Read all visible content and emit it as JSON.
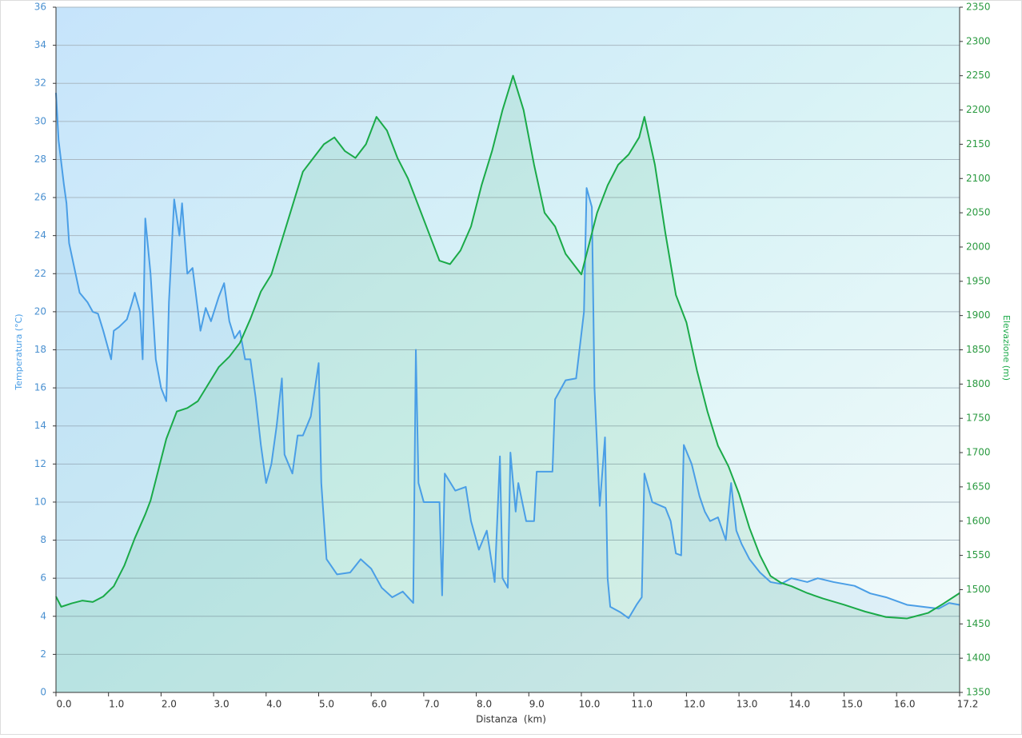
{
  "chart_data": {
    "type": "line",
    "x_label": "Distanza  (km)",
    "y_label": "Temperatura (°C)",
    "y2_label": "Elevazione (m)",
    "xlim": [
      0,
      17.2
    ],
    "xticks": [
      {
        "value": 0,
        "label": "0.0"
      },
      {
        "value": 1,
        "label": "1.0"
      },
      {
        "value": 2,
        "label": "2.0"
      },
      {
        "value": 3,
        "label": "3.0"
      },
      {
        "value": 4,
        "label": "4.0"
      },
      {
        "value": 5,
        "label": "5.0"
      },
      {
        "value": 6,
        "label": "6.0"
      },
      {
        "value": 7,
        "label": "7.0"
      },
      {
        "value": 8,
        "label": "8.0"
      },
      {
        "value": 9,
        "label": "9.0"
      },
      {
        "value": 10,
        "label": "10.0"
      },
      {
        "value": 11,
        "label": "11.0"
      },
      {
        "value": 12,
        "label": "12.0"
      },
      {
        "value": 13,
        "label": "13.0"
      },
      {
        "value": 14,
        "label": "14.0"
      },
      {
        "value": 15,
        "label": "15.0"
      },
      {
        "value": 16,
        "label": "16.0"
      },
      17.2
    ],
    "ylim": [
      0,
      36
    ],
    "yticks": [
      0,
      2,
      4,
      6,
      8,
      10,
      12,
      14,
      16,
      18,
      20,
      22,
      24,
      26,
      28,
      30,
      32,
      34,
      36
    ],
    "y2lim": [
      1350,
      2350
    ],
    "y2ticks": [
      1350,
      1400,
      1450,
      1500,
      1550,
      1600,
      1650,
      1700,
      1750,
      1800,
      1850,
      1900,
      1950,
      2000,
      2050,
      2100,
      2150,
      2200,
      2250,
      2300,
      2350
    ],
    "grid": true,
    "series": [
      {
        "name": "Temperatura",
        "color": "#4a9ee6",
        "x": [
          0,
          0.05,
          0.15,
          0.2,
          0.25,
          0.35,
          0.45,
          0.6,
          0.7,
          0.8,
          0.9,
          1.0,
          1.05,
          1.1,
          1.2,
          1.35,
          1.45,
          1.5,
          1.6,
          1.65,
          1.7,
          1.8,
          1.9,
          2.0,
          2.1,
          2.15,
          2.25,
          2.35,
          2.4,
          2.5,
          2.6,
          2.75,
          2.85,
          2.95,
          3.1,
          3.2,
          3.3,
          3.4,
          3.5,
          3.6,
          3.7,
          3.8,
          3.9,
          4.0,
          4.1,
          4.2,
          4.3,
          4.35,
          4.5,
          4.6,
          4.7,
          4.85,
          5.0,
          5.05,
          5.15,
          5.35,
          5.6,
          5.8,
          6.0,
          6.2,
          6.4,
          6.6,
          6.8,
          6.85,
          6.9,
          7.0,
          7.3,
          7.35,
          7.4,
          7.6,
          7.8,
          7.9,
          8.05,
          8.2,
          8.35,
          8.45,
          8.5,
          8.6,
          8.65,
          8.75,
          8.8,
          8.95,
          9.1,
          9.15,
          9.45,
          9.5,
          9.7,
          9.9,
          10.05,
          10.1,
          10.2,
          10.25,
          10.35,
          10.45,
          10.5,
          10.55,
          10.75,
          10.9,
          11.05,
          11.15,
          11.2,
          11.35,
          11.6,
          11.7,
          11.8,
          11.9,
          11.95,
          12.1,
          12.25,
          12.35,
          12.45,
          12.6,
          12.75,
          12.85,
          12.95,
          13.05,
          13.2,
          13.4,
          13.6,
          13.8,
          14.0,
          14.3,
          14.5,
          14.8,
          15.2,
          15.5,
          15.8,
          16.2,
          16.5,
          16.8,
          17.0,
          17.2
        ],
        "values": [
          31.5,
          29,
          26.7,
          25.7,
          23.6,
          22.3,
          21,
          20.5,
          20,
          19.9,
          19,
          18,
          17.5,
          19,
          19.2,
          19.6,
          20.5,
          21,
          20,
          17.5,
          24.9,
          22,
          17.5,
          16,
          15.3,
          20.5,
          25.9,
          24,
          25.7,
          22,
          22.3,
          19,
          20.2,
          19.5,
          20.8,
          21.5,
          19.5,
          18.6,
          19,
          17.5,
          17.5,
          15.5,
          13,
          11,
          12,
          14,
          16.5,
          12.5,
          11.5,
          13.5,
          13.5,
          14.5,
          17.3,
          11,
          7,
          6.2,
          6.3,
          7,
          6.5,
          5.5,
          5,
          5.3,
          4.7,
          18,
          11,
          10,
          10,
          5.1,
          11.5,
          10.6,
          10.8,
          9,
          7.5,
          8.5,
          5.8,
          12.4,
          6,
          5.5,
          12.6,
          9.5,
          11,
          9,
          9,
          11.6,
          11.6,
          15.4,
          16.4,
          16.5,
          20,
          26.5,
          25.5,
          16,
          9.8,
          13.4,
          6,
          4.5,
          4.2,
          3.9,
          4.6,
          5,
          11.5,
          10,
          9.7,
          9,
          7.3,
          7.2,
          13,
          12,
          10.3,
          9.5,
          9,
          9.2,
          8,
          11,
          8.5,
          7.8,
          7,
          6.3,
          5.8,
          5.7,
          6,
          5.8,
          6,
          5.8,
          5.6,
          5.2,
          5,
          4.6,
          4.5,
          4.4,
          4.7,
          4.6
        ]
      },
      {
        "name": "Elevazione",
        "color": "#1aaa48",
        "axis": "y2",
        "x": [
          0,
          0.1,
          0.3,
          0.5,
          0.7,
          0.9,
          1.1,
          1.3,
          1.5,
          1.7,
          1.8,
          1.9,
          2.0,
          2.1,
          2.2,
          2.3,
          2.5,
          2.7,
          2.9,
          3.1,
          3.3,
          3.5,
          3.7,
          3.9,
          4.1,
          4.3,
          4.5,
          4.7,
          4.9,
          5.1,
          5.3,
          5.5,
          5.7,
          5.9,
          6.1,
          6.3,
          6.5,
          6.7,
          6.9,
          7.1,
          7.3,
          7.5,
          7.7,
          7.9,
          8.1,
          8.3,
          8.5,
          8.7,
          8.9,
          9.1,
          9.3,
          9.5,
          9.7,
          9.9,
          10.0,
          10.1,
          10.3,
          10.5,
          10.7,
          10.9,
          11.1,
          11.2,
          11.4,
          11.6,
          11.8,
          12.0,
          12.2,
          12.4,
          12.6,
          12.8,
          13.0,
          13.2,
          13.4,
          13.6,
          13.8,
          14.0,
          14.3,
          14.6,
          15.0,
          15.4,
          15.8,
          16.2,
          16.6,
          16.9,
          17.2
        ],
        "values": [
          1490,
          1475,
          1480,
          1484,
          1482,
          1490,
          1505,
          1535,
          1575,
          1610,
          1630,
          1660,
          1690,
          1720,
          1740,
          1760,
          1765,
          1775,
          1800,
          1825,
          1840,
          1860,
          1895,
          1935,
          1960,
          2010,
          2060,
          2110,
          2130,
          2150,
          2160,
          2140,
          2130,
          2150,
          2190,
          2170,
          2130,
          2100,
          2060,
          2020,
          1980,
          1975,
          1995,
          2030,
          2090,
          2140,
          2200,
          2250,
          2200,
          2120,
          2050,
          2030,
          1990,
          1970,
          1960,
          1990,
          2050,
          2090,
          2120,
          2135,
          2160,
          2190,
          2120,
          2020,
          1930,
          1890,
          1820,
          1760,
          1710,
          1680,
          1640,
          1590,
          1550,
          1520,
          1510,
          1505,
          1495,
          1487,
          1478,
          1468,
          1460,
          1458,
          1466,
          1480,
          1495
        ]
      }
    ]
  }
}
